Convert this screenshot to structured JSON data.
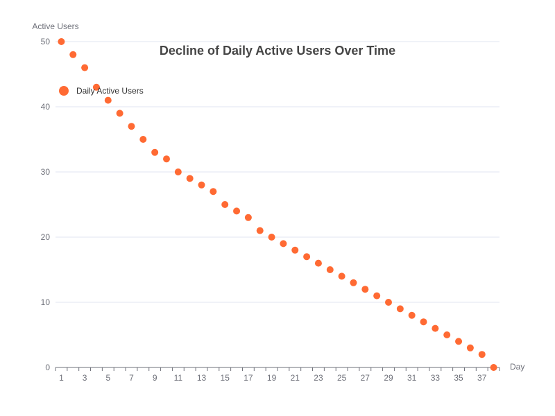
{
  "chart_data": {
    "type": "scatter",
    "title": "Decline of Daily Active Users Over Time",
    "xlabel": "Day",
    "ylabel": "Active Users",
    "legend": {
      "entries": [
        "Daily Active Users"
      ],
      "placement": "top-left"
    },
    "x_categories": [
      1,
      2,
      3,
      4,
      5,
      6,
      7,
      8,
      9,
      10,
      11,
      12,
      13,
      14,
      15,
      16,
      17,
      18,
      19,
      20,
      21,
      22,
      23,
      24,
      25,
      26,
      27,
      28,
      29,
      30,
      31,
      32,
      33,
      34,
      35,
      36,
      37,
      38
    ],
    "x_tick_labels": [
      "1",
      "3",
      "5",
      "7",
      "9",
      "11",
      "13",
      "15",
      "17",
      "19",
      "21",
      "23",
      "25",
      "27",
      "29",
      "31",
      "33",
      "35",
      "37"
    ],
    "ylim": [
      0,
      50
    ],
    "y_ticks": [
      0,
      10,
      20,
      30,
      40,
      50
    ],
    "grid": true,
    "series": [
      {
        "name": "Daily Active Users",
        "color": "#ff6a33",
        "x": [
          1,
          2,
          3,
          4,
          5,
          6,
          7,
          8,
          9,
          10,
          11,
          12,
          13,
          14,
          15,
          16,
          17,
          18,
          19,
          20,
          21,
          22,
          23,
          24,
          25,
          26,
          27,
          28,
          29,
          30,
          31,
          32,
          33,
          34,
          35,
          36,
          37,
          38
        ],
        "y": [
          50,
          48,
          46,
          43,
          41,
          39,
          37,
          35,
          33,
          32,
          30,
          29,
          28,
          27,
          25,
          24,
          23,
          21,
          20,
          19,
          18,
          17,
          16,
          15,
          14,
          13,
          12,
          11,
          10,
          9,
          8,
          7,
          6,
          5,
          4,
          3,
          2,
          0
        ]
      }
    ]
  }
}
